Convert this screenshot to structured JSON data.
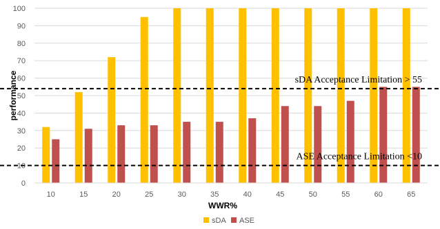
{
  "chart_data": {
    "type": "bar",
    "xlabel": "WWR%",
    "ylabel": "performance",
    "categories": [
      "10",
      "15",
      "20",
      "25",
      "30",
      "35",
      "40",
      "45",
      "50",
      "55",
      "60",
      "65"
    ],
    "series": [
      {
        "name": "sDA",
        "color": "#FFC000",
        "values": [
          32,
          52,
          72,
          95,
          100,
          100,
          100,
          100,
          100,
          100,
          100,
          100
        ]
      },
      {
        "name": "ASE",
        "color": "#C0504D",
        "values": [
          25,
          31,
          33,
          33,
          35,
          35,
          37,
          44,
          44,
          47,
          55,
          55
        ]
      }
    ],
    "ylim": [
      0,
      100
    ],
    "yticks": [
      "0",
      "10",
      "20",
      "30",
      "40",
      "50",
      "60",
      "70",
      "80",
      "90",
      "100"
    ],
    "grid": true,
    "legend_position": "bottom",
    "reference_lines": [
      {
        "value": 54,
        "label": "sDA Acceptance Limitation > 55"
      },
      {
        "value": 10,
        "label": "ASE Acceptance Limitation <10"
      }
    ]
  }
}
